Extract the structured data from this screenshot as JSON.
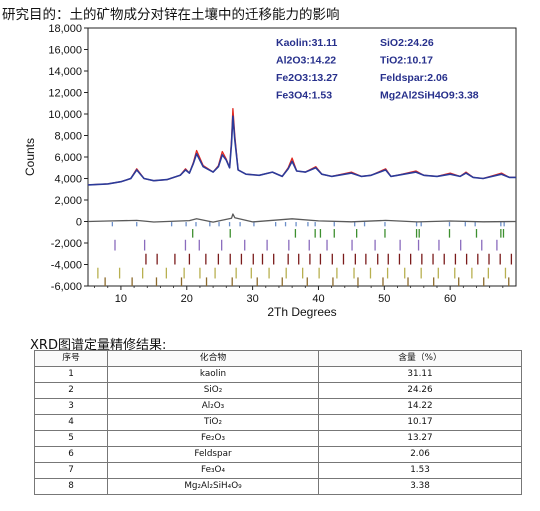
{
  "heading": "研究目的：土的矿物成分对锌在土壤中的迁移能力的影响",
  "chart_data": {
    "type": "line",
    "xlabel": "2Th Degrees",
    "ylabel": "Counts",
    "xlim": [
      5,
      70
    ],
    "ylim": [
      -6000,
      18000
    ],
    "x_ticks": [
      10,
      20,
      30,
      40,
      50,
      60
    ],
    "x_tick_labels": [
      "10",
      "20",
      "30",
      "40",
      "50",
      "60"
    ],
    "y_ticks": [
      -6000,
      -4000,
      -2000,
      0,
      2000,
      4000,
      6000,
      8000,
      10000,
      12000,
      14000,
      16000,
      18000
    ],
    "y_tick_labels": [
      "-6,000",
      "-4,000",
      "-2,000",
      "0",
      "2,000",
      "4,000",
      "6,000",
      "8,000",
      "10,000",
      "12,000",
      "14,000",
      "16,000",
      "18,000"
    ],
    "grid": false,
    "annotations": [
      "Kaolin:31.11",
      "SiO2:24.26",
      "Al2O3:14.22",
      "TiO2:10.17",
      "Fe2O3:13.27",
      "Feldspar:2.06",
      "Fe3O4:1.53",
      "Mg2Al2SiH4O9:3.38"
    ],
    "series": [
      {
        "name": "",
        "color": "#e0271f",
        "role": "observed",
        "x": [
          5,
          8,
          10,
          11.5,
          12.4,
          13.5,
          15,
          17,
          19,
          19.8,
          20.4,
          21.0,
          21.5,
          22.5,
          24,
          24.8,
          25.4,
          26.0,
          26.5,
          26.8,
          27.0,
          27.3,
          27.8,
          29,
          31,
          33,
          34.5,
          35.4,
          36,
          36.7,
          38,
          39.6,
          40.5,
          42,
          45,
          46.5,
          48,
          50.2,
          51,
          52,
          54.8,
          56,
          58,
          60,
          61.5,
          62.4,
          63.5,
          65,
          67.8,
          69,
          70
        ],
        "y": [
          3400,
          3500,
          3700,
          4000,
          4900,
          4000,
          3800,
          3900,
          4300,
          4900,
          4500,
          5500,
          6600,
          5200,
          4600,
          5200,
          6500,
          5800,
          5000,
          7600,
          10500,
          8000,
          4800,
          4400,
          4300,
          4600,
          4200,
          5000,
          5900,
          4700,
          4600,
          5100,
          4400,
          4200,
          4600,
          4200,
          4300,
          4900,
          4200,
          4300,
          4700,
          4300,
          4200,
          4500,
          4200,
          4600,
          4100,
          4000,
          4500,
          4100,
          4100
        ]
      },
      {
        "name": "",
        "color": "#2b3b9a",
        "role": "calculated",
        "x": [
          5,
          8,
          10,
          11.5,
          12.4,
          13.5,
          15,
          17,
          19,
          19.8,
          20.4,
          21.0,
          21.5,
          22.5,
          24,
          24.8,
          25.4,
          26.0,
          26.5,
          26.8,
          27.0,
          27.3,
          27.8,
          29,
          31,
          33,
          34.5,
          35.4,
          36,
          36.7,
          38,
          39.6,
          40.5,
          42,
          45,
          46.5,
          48,
          50.2,
          51,
          52,
          54.8,
          56,
          58,
          60,
          61.5,
          62.4,
          63.5,
          65,
          67.8,
          69,
          70
        ],
        "y": [
          3400,
          3500,
          3700,
          4000,
          4800,
          4000,
          3800,
          3900,
          4300,
          4800,
          4500,
          5400,
          6300,
          5100,
          4600,
          5100,
          6200,
          5700,
          5000,
          7200,
          9800,
          7600,
          4800,
          4400,
          4300,
          4600,
          4200,
          4900,
          5600,
          4700,
          4600,
          5000,
          4400,
          4200,
          4500,
          4200,
          4300,
          4800,
          4200,
          4300,
          4600,
          4300,
          4200,
          4400,
          4200,
          4500,
          4100,
          4000,
          4400,
          4100,
          4100
        ]
      },
      {
        "name": "",
        "color": "#5a5a5a",
        "role": "difference",
        "x": [
          5,
          8,
          12.4,
          15,
          20.4,
          21.5,
          24,
          26.8,
          27.0,
          27.3,
          30,
          36,
          40,
          45,
          50.2,
          55,
          60,
          65,
          70
        ],
        "y": [
          0,
          50,
          100,
          -50,
          80,
          250,
          -60,
          300,
          700,
          350,
          -40,
          250,
          60,
          -30,
          100,
          -40,
          50,
          -30,
          0
        ]
      }
    ],
    "phase_ticks": [
      {
        "color": "#6c8fc9",
        "y_top": -50,
        "y_bottom": -450,
        "x": [
          8.7,
          12.4,
          17.7,
          19.9,
          21.4,
          23.5,
          24.9,
          26.5,
          28.1,
          30.2,
          33.5,
          35.0,
          36.6,
          38.4,
          39.5,
          42.4,
          45.5,
          47.0,
          50.1,
          54.9,
          55.6,
          59.9,
          62.3,
          63.8,
          67.7,
          68.2
        ]
      },
      {
        "color": "#3d8f2f",
        "y_top": -700,
        "y_bottom": -1500,
        "x": [
          20.9,
          26.6,
          36.5,
          39.5,
          40.3,
          42.4,
          45.8,
          50.1,
          54.9,
          55.3,
          59.9,
          64.0,
          67.7,
          68.1
        ]
      },
      {
        "color": "#8a6bbd",
        "y_top": -1700,
        "y_bottom": -2700,
        "x": [
          9.1,
          13.6,
          19.8,
          21.9,
          25.3,
          28.8,
          32.2,
          35.5,
          38.6,
          41.3,
          45.1,
          48.6,
          52.4,
          55.2,
          58.3,
          61.6,
          64.8,
          67.1
        ]
      },
      {
        "color": "#7a1a1a",
        "y_top": -3000,
        "y_bottom": -4000,
        "x": [
          13.8,
          15.5,
          18.2,
          20.4,
          22.9,
          24.8,
          26.6,
          28.3,
          30.1,
          31.5,
          33.2,
          35.4,
          37.0,
          38.7,
          40.3,
          42.1,
          43.8,
          45.6,
          47.2,
          49.0,
          50.6,
          52.3,
          54.0,
          55.7,
          57.4,
          59.1,
          60.8,
          62.5,
          64.2,
          65.9,
          67.6,
          69.3
        ]
      },
      {
        "color": "#b8b050",
        "y_top": -4300,
        "y_bottom": -5300,
        "x": [
          6.5,
          9.8,
          13.3,
          16.9,
          19.6,
          22.0,
          24.3,
          27.5,
          29.8,
          32.5,
          35.1,
          37.6,
          40.1,
          42.8,
          45.4,
          47.9,
          50.5,
          53.1,
          55.6,
          58.2,
          60.7,
          63.3,
          65.8,
          68.4
        ]
      },
      {
        "color": "#8c6a2c",
        "y_top": -5200,
        "y_bottom": -6000,
        "x": [
          7.6,
          11.7,
          15.4,
          19.2,
          23.0,
          26.9,
          30.7,
          34.5,
          38.3,
          42.2,
          46.0,
          49.8,
          53.6,
          57.5,
          61.3,
          65.1,
          68.9
        ]
      }
    ]
  },
  "table": {
    "heading": "XRD图谱定量精修结果:",
    "columns": [
      "序号",
      "化合物",
      "含量（%）"
    ],
    "rows": [
      [
        "1",
        "kaolin",
        "31.11"
      ],
      [
        "2",
        "SiO₂",
        "24.26"
      ],
      [
        "3",
        "Al₂O₃",
        "14.22"
      ],
      [
        "4",
        "TiO₂",
        "10.17"
      ],
      [
        "5",
        "Fe₂O₃",
        "13.27"
      ],
      [
        "6",
        "Feldspar",
        "2.06"
      ],
      [
        "7",
        "Fe₃O₄",
        "1.53"
      ],
      [
        "8",
        "Mg₂Al₂SiH₄O₉",
        "3.38"
      ]
    ]
  }
}
